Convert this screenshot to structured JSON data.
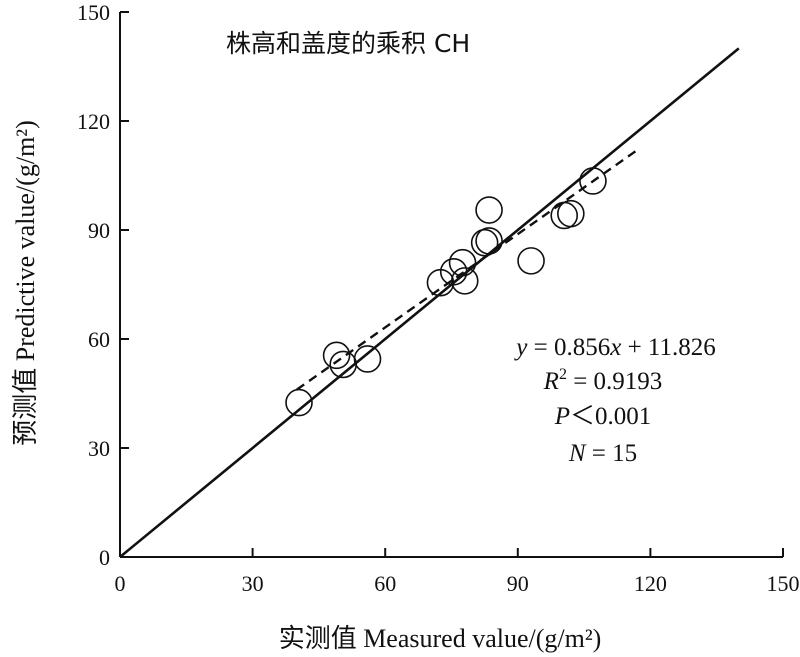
{
  "chart_data": {
    "type": "scatter",
    "title": "株高和盖度的乘积 CH",
    "xlabel": "实测值 Measured value/(g/m²)",
    "ylabel": "预测值 Predictive value/(g/m²)",
    "xlim": [
      0,
      150
    ],
    "ylim": [
      0,
      150
    ],
    "xticks": [
      0,
      30,
      60,
      90,
      120,
      150
    ],
    "yticks": [
      0,
      30,
      60,
      90,
      120,
      150
    ],
    "grid": false,
    "points": [
      {
        "x": 40.5,
        "y": 42.5
      },
      {
        "x": 49.0,
        "y": 55.5
      },
      {
        "x": 50.5,
        "y": 53.0
      },
      {
        "x": 56.0,
        "y": 54.5
      },
      {
        "x": 72.5,
        "y": 75.5
      },
      {
        "x": 75.5,
        "y": 78.5
      },
      {
        "x": 77.5,
        "y": 81.0
      },
      {
        "x": 78.0,
        "y": 76.0
      },
      {
        "x": 82.5,
        "y": 86.5
      },
      {
        "x": 83.5,
        "y": 87.0
      },
      {
        "x": 83.5,
        "y": 95.5
      },
      {
        "x": 93.0,
        "y": 81.5
      },
      {
        "x": 100.5,
        "y": 94.0
      },
      {
        "x": 102.0,
        "y": 94.5
      },
      {
        "x": 107.0,
        "y": 103.5
      }
    ],
    "identity_line": {
      "x": [
        0,
        140
      ],
      "y": [
        0,
        140
      ],
      "style": "solid"
    },
    "fit_line": {
      "slope": 0.856,
      "intercept": 11.826,
      "x_range": [
        40,
        117
      ],
      "style": "dashed"
    },
    "annotations": {
      "equation": {
        "y": "y",
        "eq": " = 0.856",
        "x": "x",
        "rest": " + 11.826"
      },
      "r2": {
        "r": "R",
        "sup": "2",
        "rest": " = 0.9193"
      },
      "p": {
        "p": "P",
        "rest": "＜0.001"
      },
      "n": {
        "n": "N",
        "rest": " = 15"
      }
    },
    "colors": {
      "axis": "#111111",
      "marker_stroke": "#111111",
      "line": "#111111"
    }
  }
}
